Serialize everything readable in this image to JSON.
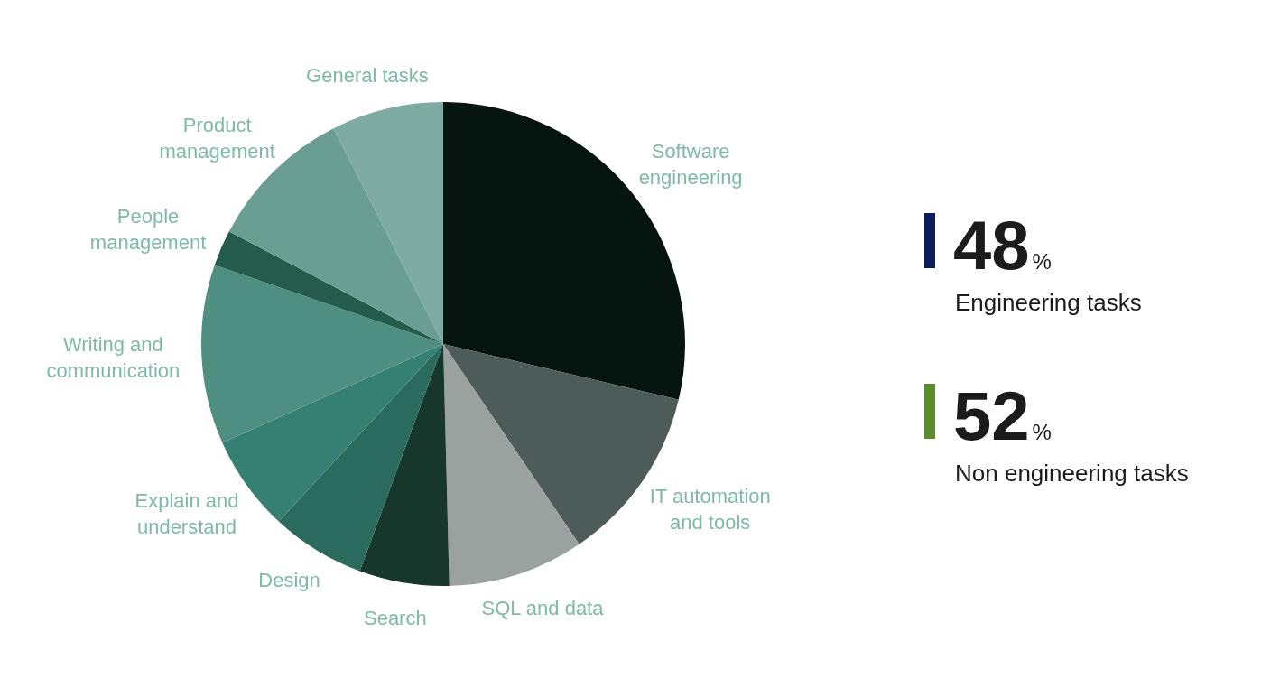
{
  "chart_data": [
    {
      "type": "pie",
      "categories": [
        "Software engineering",
        "IT automation and tools",
        "SQL and data",
        "Search",
        "Design",
        "Explain and understand",
        "Writing and communication",
        "People management",
        "Product management",
        "General tasks"
      ],
      "values": [
        28.7,
        11.8,
        9.1,
        6.0,
        6.3,
        6.4,
        12.0,
        2.4,
        9.8,
        7.5
      ],
      "colors": [
        "#071510",
        "#4e5c59",
        "#99a29f",
        "#17372c",
        "#2b6b5e",
        "#357f73",
        "#4f8f82",
        "#245b4b",
        "#6a9e93",
        "#7eaba2"
      ]
    },
    {
      "type": "other",
      "categories": [
        "Engineering tasks",
        "Non engineering tasks"
      ],
      "values": [
        48,
        52
      ],
      "value_labels": [
        "48%",
        "52%"
      ],
      "colors": [
        "#0c1d5c",
        "#5b8c2e"
      ]
    }
  ]
}
